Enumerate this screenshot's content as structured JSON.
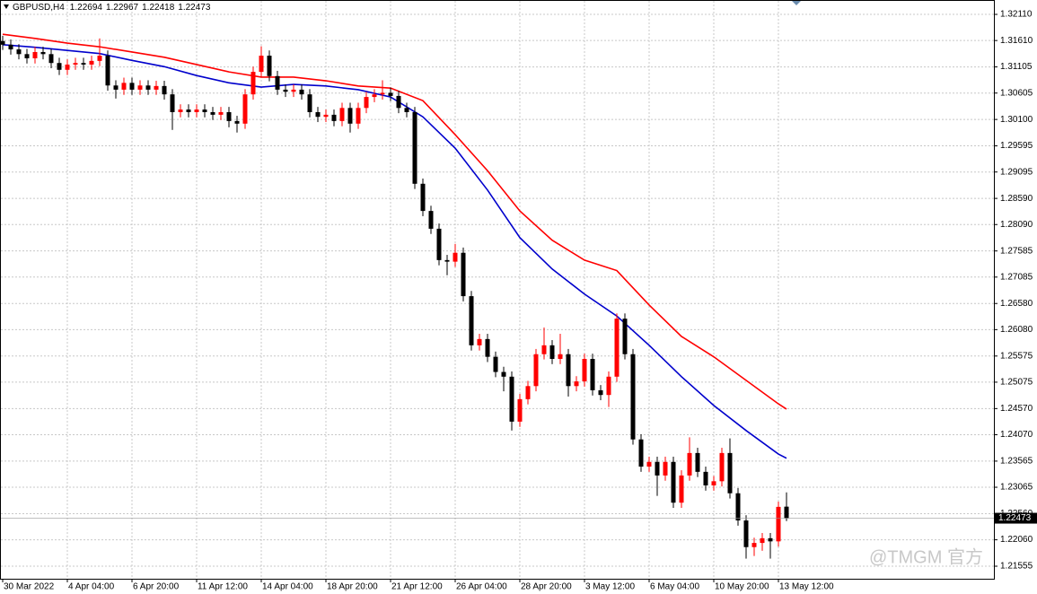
{
  "chart_data": {
    "type": "candlestick",
    "title": "GBPUSD,H4",
    "watermark": "@TMGM 官方",
    "up_color": "#ff0000",
    "down_color": "#000000",
    "grid": true,
    "xlim": [
      -0.333,
      122.667
    ],
    "ylim": [
      1.21315,
      1.32385
    ],
    "xticks": [
      {
        "value": 0,
        "label": "30 Mar 2022"
      },
      {
        "value": 8,
        "label": "4 Apr 04:00"
      },
      {
        "value": 16,
        "label": "6 Apr 20:00"
      },
      {
        "value": 24,
        "label": "11 Apr 12:00"
      },
      {
        "value": 32,
        "label": "14 Apr 04:00"
      },
      {
        "value": 40,
        "label": "18 Apr 20:00"
      },
      {
        "value": 48,
        "label": "21 Apr 12:00"
      },
      {
        "value": 56,
        "label": "26 Apr 04:00"
      },
      {
        "value": 64,
        "label": "28 Apr 20:00"
      },
      {
        "value": 72,
        "label": "3 May 12:00"
      },
      {
        "value": 80,
        "label": "6 May 04:00"
      },
      {
        "value": 88,
        "label": "10 May 20:00"
      },
      {
        "value": 96,
        "label": "13 May 12:00"
      }
    ],
    "yticks": [
      {
        "value": 1.3211,
        "label": "1.32110"
      },
      {
        "value": 1.3161,
        "label": "1.31610"
      },
      {
        "value": 1.31105,
        "label": "1.31105"
      },
      {
        "value": 1.30605,
        "label": "1.30605"
      },
      {
        "value": 1.301,
        "label": "1.30100"
      },
      {
        "value": 1.29595,
        "label": "1.29595"
      },
      {
        "value": 1.29095,
        "label": "1.29095"
      },
      {
        "value": 1.2859,
        "label": "1.28590"
      },
      {
        "value": 1.2809,
        "label": "1.28090"
      },
      {
        "value": 1.27585,
        "label": "1.27585"
      },
      {
        "value": 1.27085,
        "label": "1.27085"
      },
      {
        "value": 1.2658,
        "label": "1.26580"
      },
      {
        "value": 1.2608,
        "label": "1.26080"
      },
      {
        "value": 1.25575,
        "label": "1.25575"
      },
      {
        "value": 1.25075,
        "label": "1.25075"
      },
      {
        "value": 1.2457,
        "label": "1.24570"
      },
      {
        "value": 1.2407,
        "label": "1.24070"
      },
      {
        "value": 1.23565,
        "label": "1.23565"
      },
      {
        "value": 1.23065,
        "label": "1.23065"
      },
      {
        "value": 1.2256,
        "label": "1.22560"
      },
      {
        "value": 1.2206,
        "label": "1.22060"
      },
      {
        "value": 1.21555,
        "label": "1.21555"
      }
    ],
    "open": [
      1.316,
      1.3153,
      1.3144,
      1.3135,
      1.3127,
      1.3139,
      1.3135,
      1.3118,
      1.3105,
      1.3115,
      1.3118,
      1.3115,
      1.3122,
      1.3132,
      1.3075,
      1.3067,
      1.308,
      1.3067,
      1.3075,
      1.3067,
      1.3074,
      1.3058,
      1.3024,
      1.3029,
      1.3024,
      1.3029,
      1.3024,
      1.3019,
      1.3024,
      1.3007,
      1.3002,
      1.3058,
      1.3101,
      1.3132,
      1.3093,
      1.3067,
      1.3063,
      1.3067,
      1.3058,
      1.3024,
      1.3015,
      1.3019,
      1.3007,
      1.3032,
      1.3002,
      1.3032,
      1.3053,
      1.3058,
      1.3061,
      1.3055,
      1.3032,
      1.3024,
      1.2887,
      1.2835,
      1.2801,
      1.2741,
      1.2738,
      1.2755,
      1.2672,
      1.2578,
      1.259,
      1.2556,
      1.2527,
      1.2518,
      1.2432,
      1.2475,
      1.25,
      1.2561,
      1.2578,
      1.2552,
      1.2561,
      1.25,
      1.2509,
      1.2552,
      1.2492,
      1.2483,
      1.2518,
      1.2629,
      1.2561,
      1.2398,
      1.2346,
      1.2355,
      1.2329,
      1.2355,
      1.2277,
      1.2329,
      1.2372,
      1.2336,
      1.231,
      1.2318,
      1.2372,
      1.2295,
      1.2243,
      1.2192,
      1.22,
      1.2209,
      1.2203,
      1.22694
    ],
    "high": [
      1.317,
      1.3163,
      1.3154,
      1.3145,
      1.3149,
      1.3149,
      1.3145,
      1.3128,
      1.3125,
      1.3128,
      1.3128,
      1.3132,
      1.3165,
      1.3142,
      1.3085,
      1.309,
      1.309,
      1.3085,
      1.3085,
      1.3084,
      1.3084,
      1.3068,
      1.3039,
      1.3039,
      1.3039,
      1.3039,
      1.3034,
      1.3034,
      1.3034,
      1.3017,
      1.3068,
      1.3111,
      1.315,
      1.3142,
      1.3103,
      1.3077,
      1.3077,
      1.3077,
      1.3068,
      1.3034,
      1.3029,
      1.3029,
      1.3042,
      1.3042,
      1.3042,
      1.3063,
      1.3068,
      1.3085,
      1.3071,
      1.3065,
      1.3042,
      1.3034,
      1.2897,
      1.2845,
      1.2811,
      1.2751,
      1.2772,
      1.2765,
      1.2682,
      1.26,
      1.26,
      1.2566,
      1.2537,
      1.2528,
      1.2485,
      1.251,
      1.2571,
      1.2612,
      1.2588,
      1.26,
      1.2571,
      1.2519,
      1.2562,
      1.2562,
      1.2502,
      1.2528,
      1.2639,
      1.2639,
      1.2571,
      1.2408,
      1.2365,
      1.2365,
      1.2365,
      1.2365,
      1.2339,
      1.2402,
      1.2382,
      1.2346,
      1.2328,
      1.2382,
      1.24,
      1.2305,
      1.2253,
      1.221,
      1.2219,
      1.2219,
      1.2279,
      1.22967
    ],
    "low": [
      1.3143,
      1.3134,
      1.3125,
      1.3117,
      1.3117,
      1.3125,
      1.3108,
      1.3095,
      1.3095,
      1.3105,
      1.3105,
      1.3105,
      1.3112,
      1.3065,
      1.305,
      1.3057,
      1.3057,
      1.3057,
      1.3057,
      1.3057,
      1.3048,
      1.299,
      1.3014,
      1.3014,
      1.3014,
      1.3014,
      1.3009,
      1.3009,
      1.2995,
      1.2985,
      1.2992,
      1.3048,
      1.3091,
      1.3083,
      1.3057,
      1.3053,
      1.3053,
      1.3048,
      1.3014,
      1.3005,
      1.3005,
      1.2997,
      1.2997,
      1.2985,
      1.2992,
      1.3022,
      1.3043,
      1.3048,
      1.3045,
      1.3022,
      1.3014,
      1.2877,
      1.2825,
      1.2791,
      1.2731,
      1.2712,
      1.2728,
      1.2662,
      1.2568,
      1.2568,
      1.2546,
      1.2517,
      1.249,
      1.2415,
      1.2422,
      1.2465,
      1.249,
      1.2551,
      1.2542,
      1.2542,
      1.248,
      1.249,
      1.2499,
      1.2482,
      1.2473,
      1.246,
      1.2508,
      1.2551,
      1.2388,
      1.2336,
      1.2336,
      1.229,
      1.2319,
      1.2267,
      1.2267,
      1.2319,
      1.2326,
      1.23,
      1.23,
      1.2308,
      1.2285,
      1.2233,
      1.217,
      1.2175,
      1.2185,
      1.217,
      1.2193,
      1.22418
    ],
    "close": [
      1.3153,
      1.3144,
      1.3135,
      1.3127,
      1.3139,
      1.3135,
      1.3118,
      1.3105,
      1.3115,
      1.3118,
      1.3115,
      1.3122,
      1.3132,
      1.3075,
      1.3067,
      1.308,
      1.3067,
      1.3075,
      1.3067,
      1.3074,
      1.3058,
      1.3024,
      1.3029,
      1.3024,
      1.3029,
      1.3024,
      1.3019,
      1.3024,
      1.3007,
      1.3002,
      1.3058,
      1.3101,
      1.3132,
      1.3093,
      1.3067,
      1.3063,
      1.3067,
      1.3058,
      1.3024,
      1.3015,
      1.3019,
      1.3007,
      1.3032,
      1.3002,
      1.3032,
      1.3053,
      1.3058,
      1.3061,
      1.3055,
      1.3032,
      1.3024,
      1.2887,
      1.2835,
      1.2801,
      1.2741,
      1.2738,
      1.2755,
      1.2672,
      1.2578,
      1.259,
      1.2556,
      1.2527,
      1.2518,
      1.2432,
      1.2475,
      1.25,
      1.2561,
      1.2578,
      1.2552,
      1.2561,
      1.25,
      1.2509,
      1.2552,
      1.2492,
      1.2483,
      1.2518,
      1.2629,
      1.2561,
      1.2398,
      1.2346,
      1.2355,
      1.2329,
      1.2355,
      1.2277,
      1.2329,
      1.2372,
      1.2336,
      1.231,
      1.2318,
      1.2372,
      1.2295,
      1.2243,
      1.2192,
      1.22,
      1.2209,
      1.2203,
      1.2269,
      1.22473
    ],
    "lines": [
      {
        "color": "#0000cc",
        "x": [
          0,
          4,
          8,
          12,
          16,
          20,
          24,
          28,
          32,
          36,
          40,
          44,
          48,
          52,
          56,
          60,
          64,
          68,
          72,
          76,
          80,
          84,
          88,
          92,
          96,
          97
        ],
        "values": [
          1.3153,
          1.3148,
          1.3142,
          1.3136,
          1.3123,
          1.3111,
          1.3094,
          1.308,
          1.3072,
          1.3077,
          1.3074,
          1.3067,
          1.3053,
          1.3015,
          1.2955,
          1.2875,
          1.2784,
          1.2724,
          1.2676,
          1.2634,
          1.2578,
          1.2518,
          1.2463,
          1.2415,
          1.237,
          1.2362
        ]
      },
      {
        "color": "#ff0000",
        "x": [
          0,
          4,
          8,
          12,
          16,
          20,
          24,
          28,
          32,
          36,
          40,
          44,
          48,
          52,
          56,
          60,
          64,
          68,
          72,
          76,
          80,
          84,
          88,
          92,
          96,
          97
        ],
        "values": [
          1.3173,
          1.3165,
          1.3156,
          1.3149,
          1.3139,
          1.3129,
          1.3115,
          1.3101,
          1.3091,
          1.3091,
          1.3084,
          1.3074,
          1.307,
          1.3046,
          1.2981,
          1.2912,
          1.2835,
          1.2779,
          1.2741,
          1.2721,
          1.2655,
          1.2595,
          1.2556,
          1.2511,
          1.2466,
          1.2456
        ]
      }
    ]
  }
}
